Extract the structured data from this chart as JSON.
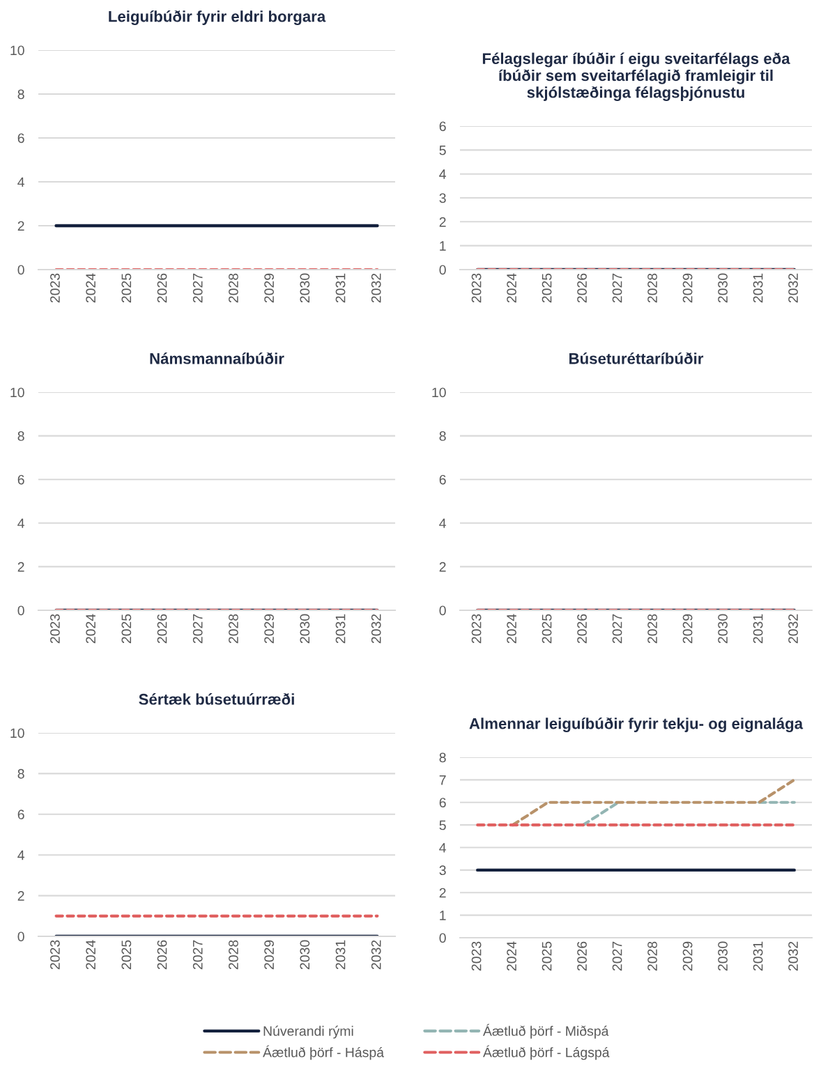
{
  "chart_data": [
    {
      "type": "line",
      "title": "Leiguíbúðir fyrir eldri borgara",
      "categories": [
        "2023",
        "2024",
        "2025",
        "2026",
        "2027",
        "2028",
        "2029",
        "2030",
        "2031",
        "2032"
      ],
      "ylim": [
        0,
        10
      ],
      "yticks": [
        0,
        2,
        4,
        6,
        8,
        10
      ],
      "grid": "y",
      "legend": "bottom",
      "series": [
        {
          "name": "Núverandi rými",
          "color": "#14213d",
          "line_style": "solid",
          "values": [
            2,
            2,
            2,
            2,
            2,
            2,
            2,
            2,
            2,
            2
          ]
        },
        {
          "name": "Áætluð þörf - Miðspá",
          "color": "#93b5b3",
          "line_style": "dashed",
          "values": [
            null,
            null,
            null,
            null,
            null,
            null,
            null,
            null,
            null,
            null
          ]
        },
        {
          "name": "Áætluð þörf - Háspá",
          "color": "#b8926a",
          "line_style": "dashed",
          "values": [
            null,
            null,
            null,
            null,
            null,
            null,
            null,
            null,
            null,
            null
          ]
        },
        {
          "name": "Áætluð þörf - Lágspá",
          "color": "#e06060",
          "line_style": "dashed",
          "values": [
            0,
            0,
            0,
            0,
            0,
            0,
            0,
            0,
            0,
            0
          ]
        }
      ]
    },
    {
      "type": "line",
      "title": "Félagslegar íbúðir í eigu sveitarfélags eða íbúðir sem sveitarfélagið framleigir til skjólstæðinga félagsþjónustu",
      "categories": [
        "2023",
        "2024",
        "2025",
        "2026",
        "2027",
        "2028",
        "2029",
        "2030",
        "2031",
        "2032"
      ],
      "ylim": [
        0,
        6
      ],
      "yticks": [
        0,
        1,
        2,
        3,
        4,
        5,
        6
      ],
      "grid": "y",
      "series": [
        {
          "color": "#14213d",
          "line_style": "solid",
          "values": [
            0,
            0,
            0,
            0,
            0,
            0,
            0,
            0,
            0,
            0
          ]
        },
        {
          "color": "#e06060",
          "line_style": "dashed",
          "values": [
            0,
            0,
            0,
            0,
            0,
            0,
            0,
            0,
            0,
            0
          ]
        }
      ]
    },
    {
      "type": "line",
      "title": "Námsmannaíbúðir",
      "categories": [
        "2023",
        "2024",
        "2025",
        "2026",
        "2027",
        "2028",
        "2029",
        "2030",
        "2031",
        "2032"
      ],
      "ylim": [
        0,
        10
      ],
      "yticks": [
        0,
        2,
        4,
        6,
        8,
        10
      ],
      "grid": "y",
      "series": [
        {
          "color": "#14213d",
          "line_style": "solid",
          "values": [
            0,
            0,
            0,
            0,
            0,
            0,
            0,
            0,
            0,
            0
          ]
        },
        {
          "color": "#e06060",
          "line_style": "dashed",
          "values": [
            0,
            0,
            0,
            0,
            0,
            0,
            0,
            0,
            0,
            0
          ]
        }
      ]
    },
    {
      "type": "line",
      "title": "Búseturéttaríbúðir",
      "categories": [
        "2023",
        "2024",
        "2025",
        "2026",
        "2027",
        "2028",
        "2029",
        "2030",
        "2031",
        "2032"
      ],
      "ylim": [
        0,
        10
      ],
      "yticks": [
        0,
        2,
        4,
        6,
        8,
        10
      ],
      "grid": "y",
      "series": [
        {
          "color": "#14213d",
          "line_style": "solid",
          "values": [
            0,
            0,
            0,
            0,
            0,
            0,
            0,
            0,
            0,
            0
          ]
        },
        {
          "color": "#e06060",
          "line_style": "dashed",
          "values": [
            0,
            0,
            0,
            0,
            0,
            0,
            0,
            0,
            0,
            0
          ]
        }
      ]
    },
    {
      "type": "line",
      "title": "Sértæk búsetuúrræði",
      "categories": [
        "2023",
        "2024",
        "2025",
        "2026",
        "2027",
        "2028",
        "2029",
        "2030",
        "2031",
        "2032"
      ],
      "ylim": [
        0,
        10
      ],
      "yticks": [
        0,
        2,
        4,
        6,
        8,
        10
      ],
      "grid": "y",
      "series": [
        {
          "color": "#14213d",
          "line_style": "solid",
          "values": [
            0,
            0,
            0,
            0,
            0,
            0,
            0,
            0,
            0,
            0
          ]
        },
        {
          "color": "#e06060",
          "line_style": "dashed",
          "values": [
            1,
            1,
            1,
            1,
            1,
            1,
            1,
            1,
            1,
            1
          ]
        }
      ]
    },
    {
      "type": "line",
      "title": "Almennar leiguíbúðir fyrir tekju- og eignalága",
      "categories": [
        "2023",
        "2024",
        "2025",
        "2026",
        "2027",
        "2028",
        "2029",
        "2030",
        "2031",
        "2032"
      ],
      "ylim": [
        0,
        8
      ],
      "yticks": [
        0,
        1,
        2,
        3,
        4,
        5,
        6,
        7,
        8
      ],
      "grid": "y",
      "series": [
        {
          "color": "#14213d",
          "line_style": "solid",
          "values": [
            3,
            3,
            3,
            3,
            3,
            3,
            3,
            3,
            3,
            3
          ]
        },
        {
          "color": "#93b5b3",
          "line_style": "dashed",
          "values": [
            null,
            null,
            null,
            5,
            6,
            null,
            null,
            null,
            6,
            6
          ]
        },
        {
          "color": "#b8926a",
          "line_style": "dashed",
          "values": [
            null,
            5,
            6,
            6,
            6,
            6,
            6,
            6,
            6,
            7
          ]
        },
        {
          "color": "#e06060",
          "line_style": "dashed",
          "values": [
            5,
            5,
            5,
            5,
            5,
            5,
            5,
            5,
            5,
            5
          ]
        }
      ]
    }
  ]
}
